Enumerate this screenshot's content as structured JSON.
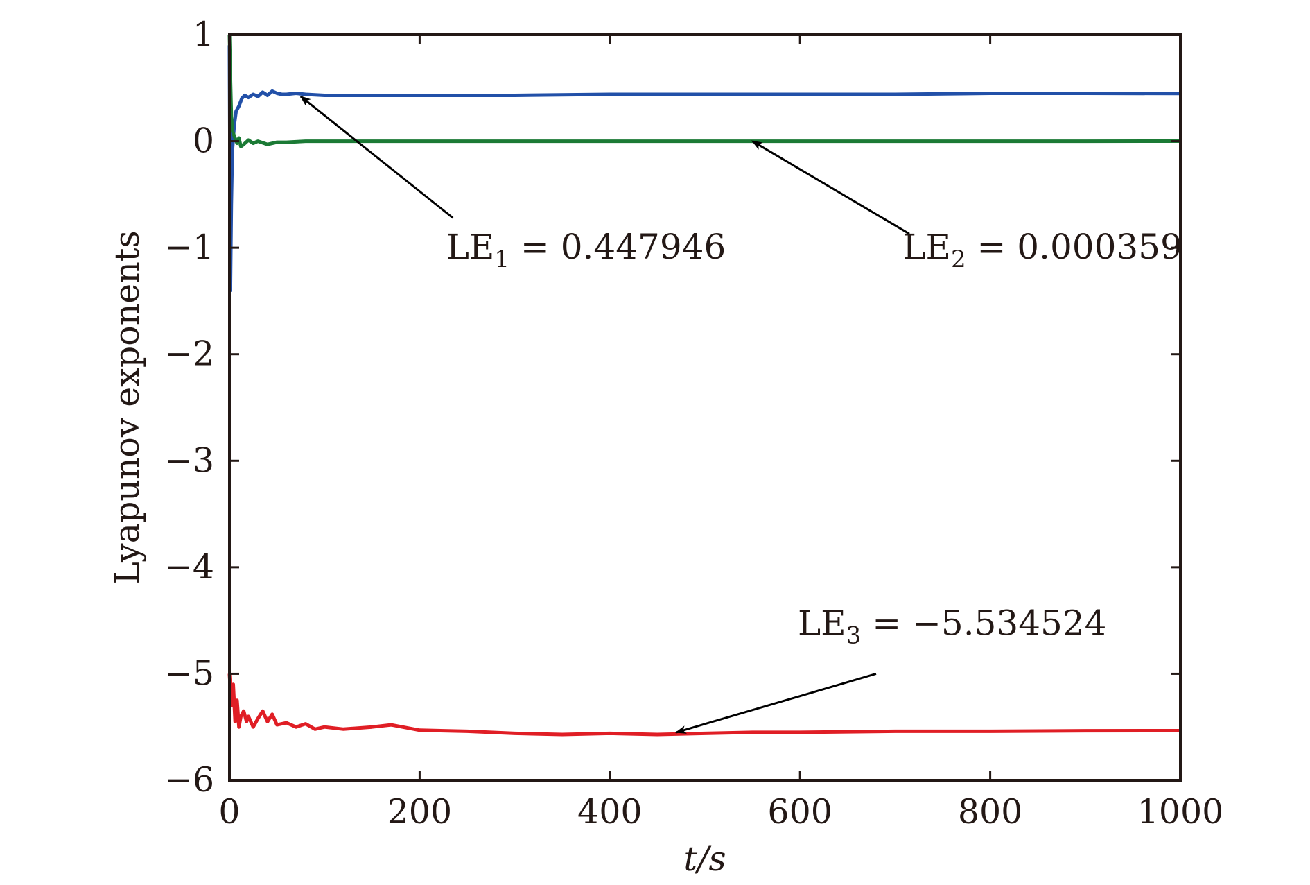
{
  "chart_data": {
    "type": "line",
    "xlabel": "t/s",
    "ylabel": "Lyapunov exponents",
    "xlim": [
      0,
      1000
    ],
    "ylim": [
      -6,
      1
    ],
    "x_ticks": [
      0,
      200,
      400,
      600,
      800,
      1000
    ],
    "y_ticks": [
      1,
      0,
      -1,
      -2,
      -3,
      -4,
      -5,
      -6
    ],
    "x_tick_labels": [
      "0",
      "200",
      "400",
      "600",
      "800",
      "1000"
    ],
    "y_tick_labels": [
      "1",
      "0",
      "−1",
      "−2",
      "−3",
      "−4",
      "−5",
      "−6"
    ],
    "grid": false,
    "series": [
      {
        "color": "#2250a8",
        "x": [
          0,
          1,
          2,
          3,
          5,
          7,
          10,
          13,
          16,
          20,
          25,
          30,
          35,
          40,
          45,
          50,
          55,
          60,
          70,
          80,
          100,
          150,
          200,
          300,
          400,
          500,
          600,
          700,
          800,
          900,
          1000
        ],
        "y": [
          0.9,
          -1.4,
          -0.6,
          -0.1,
          0.15,
          0.28,
          0.33,
          0.4,
          0.43,
          0.41,
          0.44,
          0.42,
          0.46,
          0.43,
          0.47,
          0.45,
          0.44,
          0.44,
          0.45,
          0.44,
          0.43,
          0.43,
          0.43,
          0.43,
          0.44,
          0.44,
          0.44,
          0.44,
          0.45,
          0.45,
          0.448
        ]
      },
      {
        "color": "#1b7a35",
        "x": [
          0,
          1,
          2,
          3,
          5,
          8,
          10,
          12,
          15,
          20,
          25,
          30,
          40,
          50,
          60,
          80,
          100,
          150,
          200,
          300,
          400,
          500,
          600,
          700,
          800,
          900,
          1000
        ],
        "y": [
          1.0,
          0.6,
          0.25,
          0.1,
          0.05,
          -0.02,
          0.03,
          -0.05,
          -0.03,
          0.01,
          -0.02,
          0.0,
          -0.03,
          -0.01,
          -0.01,
          0.0,
          0.0,
          0.0,
          0.0,
          0.0,
          0.0,
          0.0,
          0.0,
          0.0,
          0.0,
          0.0,
          0.0004
        ]
      },
      {
        "color": "#e01e25",
        "x": [
          0,
          2,
          4,
          6,
          8,
          10,
          12,
          15,
          18,
          20,
          25,
          30,
          35,
          40,
          45,
          50,
          60,
          70,
          80,
          90,
          100,
          120,
          150,
          170,
          200,
          250,
          300,
          350,
          400,
          450,
          500,
          550,
          600,
          700,
          800,
          900,
          1000
        ],
        "y": [
          -5.0,
          -5.3,
          -5.1,
          -5.45,
          -5.25,
          -5.5,
          -5.4,
          -5.35,
          -5.45,
          -5.4,
          -5.5,
          -5.42,
          -5.35,
          -5.45,
          -5.38,
          -5.48,
          -5.46,
          -5.5,
          -5.47,
          -5.52,
          -5.5,
          -5.52,
          -5.5,
          -5.48,
          -5.53,
          -5.54,
          -5.56,
          -5.57,
          -5.56,
          -5.57,
          -5.56,
          -5.55,
          -5.55,
          -5.54,
          -5.54,
          -5.535,
          -5.5345
        ]
      }
    ],
    "annotations": [
      {
        "base": "LE",
        "sub": "1",
        "rest": " = 0.447946",
        "text_at": [
          375,
          -1.0
        ],
        "arrow_from": [
          235,
          -0.72
        ],
        "arrow_to": [
          75,
          0.42
        ]
      },
      {
        "base": "LE",
        "sub": "2",
        "rest": " = 0.000359",
        "text_at": [
          855,
          -1.0
        ],
        "arrow_from": [
          715,
          -0.87
        ],
        "arrow_to": [
          550,
          0.0
        ]
      },
      {
        "base": "LE",
        "sub": "3",
        "rest": " = −5.534524",
        "text_at": [
          760,
          -4.53
        ],
        "arrow_from": [
          680,
          -5.0
        ],
        "arrow_to": [
          470,
          -5.55
        ]
      }
    ]
  }
}
